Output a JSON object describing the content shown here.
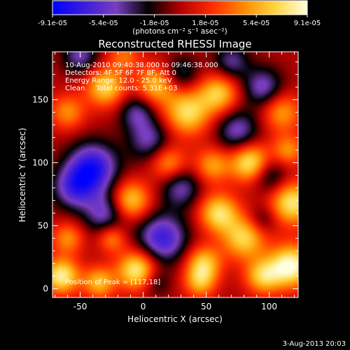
{
  "chart_data": {
    "type": "heatmap",
    "title": "Reconstructed RHESSI Image",
    "xlabel": "Heliocentric X (arcsec)",
    "ylabel": "Heliocentric Y (arcsec)",
    "xlim": [
      -72,
      123
    ],
    "ylim": [
      -7,
      188
    ],
    "xticks": [
      -50,
      0,
      50,
      100
    ],
    "yticks": [
      0,
      50,
      100,
      150
    ],
    "grid": false,
    "annotations": [
      "10-Aug-2010 09:40:38.000 to 09:46:38.000",
      "Detectors: 4F 5F 6F 7F 8F, Att 0",
      "Energy Range: 12.0 - 25.0 keV",
      "Clean     Total counts: 5.31E+03"
    ],
    "peak_label": "Position of Peak = [117,18]",
    "peak": [
      117,
      18
    ],
    "colorbar": {
      "ticks": [
        "-9.1e-05",
        "-5.4e-05",
        "-1.8e-05",
        "1.8e-05",
        "5.4e-05",
        "9.1e-05"
      ],
      "range": [
        -9.1e-05,
        9.1e-05
      ],
      "unit": "(photons cm⁻² s⁻¹ asec⁻²)",
      "colors": [
        "#0000ff",
        "#3c1cdc",
        "#7a3ec0",
        "#000000",
        "#b00000",
        "#ff2a00",
        "#ff8a00",
        "#ffd640",
        "#ffffe0"
      ]
    },
    "blobs": [
      {
        "x": 117,
        "y": 18,
        "v": 1.0,
        "s": 12
      },
      {
        "x": 118,
        "y": 68,
        "v": 0.85,
        "s": 12
      },
      {
        "x": 85,
        "y": 100,
        "v": 0.9,
        "s": 11
      },
      {
        "x": 60,
        "y": 60,
        "v": 0.8,
        "s": 11
      },
      {
        "x": 80,
        "y": 40,
        "v": 0.75,
        "s": 12
      },
      {
        "x": 48,
        "y": 20,
        "v": 0.7,
        "s": 10
      },
      {
        "x": 95,
        "y": 10,
        "v": 0.7,
        "s": 10
      },
      {
        "x": 55,
        "y": 98,
        "v": 0.55,
        "s": 10
      },
      {
        "x": 35,
        "y": 140,
        "v": 0.8,
        "s": 13
      },
      {
        "x": 60,
        "y": 155,
        "v": 0.7,
        "s": 11
      },
      {
        "x": 10,
        "y": 162,
        "v": 0.65,
        "s": 11
      },
      {
        "x": -30,
        "y": 160,
        "v": 0.75,
        "s": 11
      },
      {
        "x": -60,
        "y": 140,
        "v": 0.5,
        "s": 10
      },
      {
        "x": 20,
        "y": 100,
        "v": 0.55,
        "s": 10
      },
      {
        "x": -10,
        "y": 70,
        "v": 0.75,
        "s": 11
      },
      {
        "x": -5,
        "y": 15,
        "v": 0.9,
        "s": 11
      },
      {
        "x": -65,
        "y": 10,
        "v": 0.9,
        "s": 10
      },
      {
        "x": -35,
        "y": 5,
        "v": 0.65,
        "s": 9
      },
      {
        "x": -60,
        "y": 40,
        "v": 0.5,
        "s": 9
      },
      {
        "x": -25,
        "y": 40,
        "v": 0.5,
        "s": 8
      },
      {
        "x": 45,
        "y": 5,
        "v": 0.55,
        "s": 9
      },
      {
        "x": 110,
        "y": 140,
        "v": 0.55,
        "s": 11
      },
      {
        "x": -40,
        "y": 96,
        "v": -0.85,
        "s": 14
      },
      {
        "x": -55,
        "y": 80,
        "v": -0.6,
        "s": 12
      },
      {
        "x": 15,
        "y": 40,
        "v": -0.75,
        "s": 14
      },
      {
        "x": -30,
        "y": 60,
        "v": -0.55,
        "s": 12
      },
      {
        "x": 5,
        "y": 118,
        "v": -0.5,
        "s": 12
      },
      {
        "x": 75,
        "y": 125,
        "v": -0.55,
        "s": 12
      },
      {
        "x": 95,
        "y": 160,
        "v": -0.55,
        "s": 11
      },
      {
        "x": 70,
        "y": 180,
        "v": -0.45,
        "s": 10
      },
      {
        "x": -50,
        "y": 185,
        "v": -0.5,
        "s": 10
      },
      {
        "x": -5,
        "y": 140,
        "v": -0.45,
        "s": 10
      },
      {
        "x": 100,
        "y": 90,
        "v": -0.45,
        "s": 10
      },
      {
        "x": 30,
        "y": 80,
        "v": -0.5,
        "s": 11
      },
      {
        "x": 30,
        "y": 170,
        "v": -0.4,
        "s": 10
      },
      {
        "x": 95,
        "y": 55,
        "v": -0.3,
        "s": 8
      },
      {
        "x": 10,
        "y": 5,
        "v": -0.3,
        "s": 8
      },
      {
        "x": -15,
        "y": 185,
        "v": 0.4,
        "s": 9
      },
      {
        "x": 115,
        "y": 110,
        "v": 0.5,
        "s": 9
      }
    ]
  },
  "footer": {
    "date": "3-Aug-2013 20:03"
  }
}
